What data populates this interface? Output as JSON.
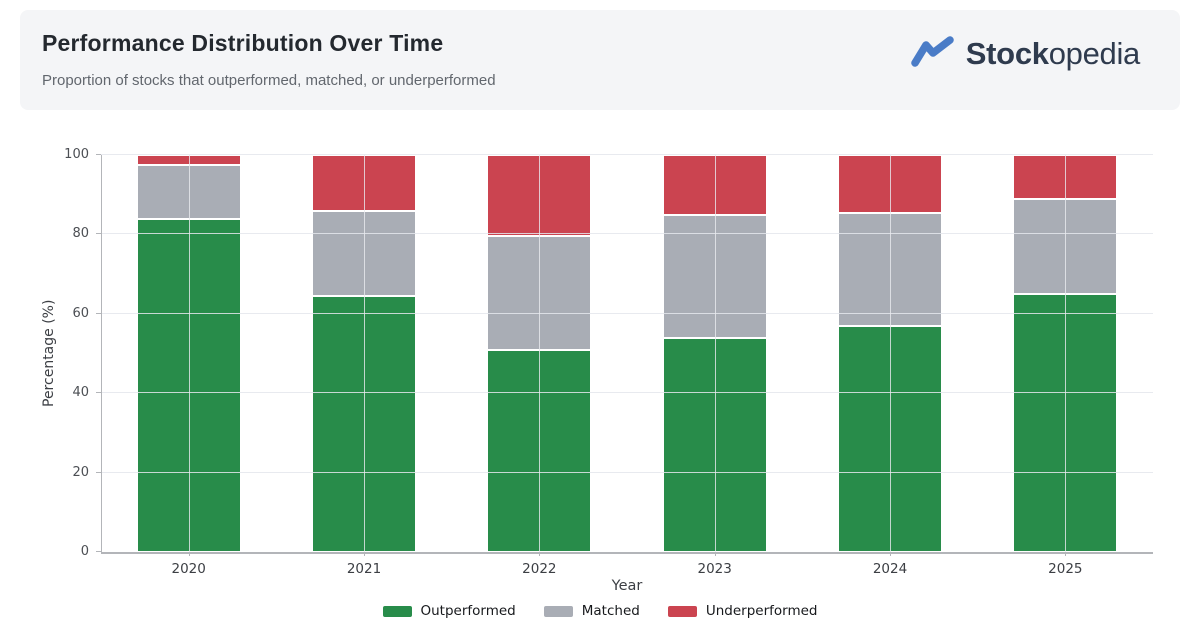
{
  "header": {
    "title": "Performance Distribution Over Time",
    "subtitle": "Proportion of stocks that outperformed, matched, or underperformed",
    "logo": {
      "brand_bold": "Stock",
      "brand_light": "opedia",
      "icon": "trend-line-icon",
      "icon_color": "#4a7cc7",
      "text_color": "#2f3b4e"
    }
  },
  "chart_data": {
    "type": "bar",
    "stacked": true,
    "title": "Performance Distribution Over Time",
    "xlabel": "Year",
    "ylabel": "Percentage (%)",
    "ylim": [
      0,
      100
    ],
    "yticks": [
      0,
      20,
      40,
      60,
      80,
      100
    ],
    "grid": true,
    "legend_position": "bottom",
    "categories": [
      "2020",
      "2021",
      "2022",
      "2023",
      "2024",
      "2025"
    ],
    "series": [
      {
        "name": "Outperformed",
        "color": "#288c4a",
        "values": [
          84,
          64.5,
          51,
          54,
          57,
          65
        ]
      },
      {
        "name": "Matched",
        "color": "#a9adb5",
        "values": [
          13.5,
          21.5,
          28.5,
          31,
          28.5,
          24
        ]
      },
      {
        "name": "Underperformed",
        "color": "#cb4450",
        "values": [
          2.5,
          14,
          20.5,
          15,
          14.5,
          11
        ]
      }
    ]
  }
}
